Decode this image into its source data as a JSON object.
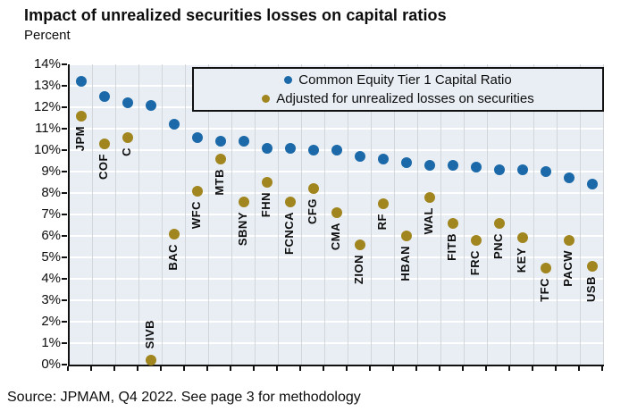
{
  "title": "Impact of unrealized securities losses on capital ratios",
  "subtitle": "Percent",
  "source": "Source: JPMAM, Q4 2022. See page 3 for methodology",
  "colors": {
    "cet1_blue": "#1B69A8",
    "adjusted_gold": "#A1861F",
    "plot_background": "#e8eef4",
    "h_gridline": "#ffffff",
    "v_gridline": "#d2d6da",
    "axis": "#111111"
  },
  "legend": {
    "items": [
      {
        "label": "Common Equity Tier 1 Capital Ratio",
        "color": "#1B69A8"
      },
      {
        "label": "Adjusted for unrealized losses on securities",
        "color": "#A1861F"
      }
    ]
  },
  "chart_data": {
    "type": "scatter",
    "title": "Impact of unrealized securities losses on capital ratios",
    "ylabel": "Percent",
    "ylim": [
      0,
      14
    ],
    "ytick_step": 1,
    "ytick_labels": [
      "0%",
      "1%",
      "2%",
      "3%",
      "4%",
      "5%",
      "6%",
      "7%",
      "8%",
      "9%",
      "10%",
      "11%",
      "12%",
      "13%",
      "14%"
    ],
    "grid": true,
    "legend_position": "top-inside",
    "categories": [
      "JPM",
      "COF",
      "C",
      "SIVB",
      "BAC",
      "WFC",
      "MTB",
      "SBNY",
      "FHN",
      "FCNCA",
      "CFG",
      "CMA",
      "ZION",
      "RF",
      "HBAN",
      "WAL",
      "FITB",
      "FRC",
      "PNC",
      "KEY",
      "TFC",
      "PACW",
      "USB"
    ],
    "series": [
      {
        "name": "Common Equity Tier 1 Capital Ratio",
        "color": "#1B69A8",
        "values": [
          13.2,
          12.5,
          12.2,
          12.1,
          11.2,
          10.6,
          10.4,
          10.4,
          10.1,
          10.1,
          10.0,
          10.0,
          9.7,
          9.6,
          9.4,
          9.3,
          9.3,
          9.2,
          9.1,
          9.1,
          9.0,
          8.7,
          8.4
        ]
      },
      {
        "name": "Adjusted for unrealized losses on securities",
        "color": "#A1861F",
        "values": [
          11.6,
          10.3,
          10.6,
          0.2,
          6.1,
          8.1,
          9.6,
          7.6,
          8.5,
          7.6,
          8.2,
          7.1,
          5.6,
          7.5,
          6.0,
          7.8,
          6.6,
          5.8,
          6.6,
          5.9,
          4.5,
          5.8,
          4.6
        ]
      }
    ]
  }
}
